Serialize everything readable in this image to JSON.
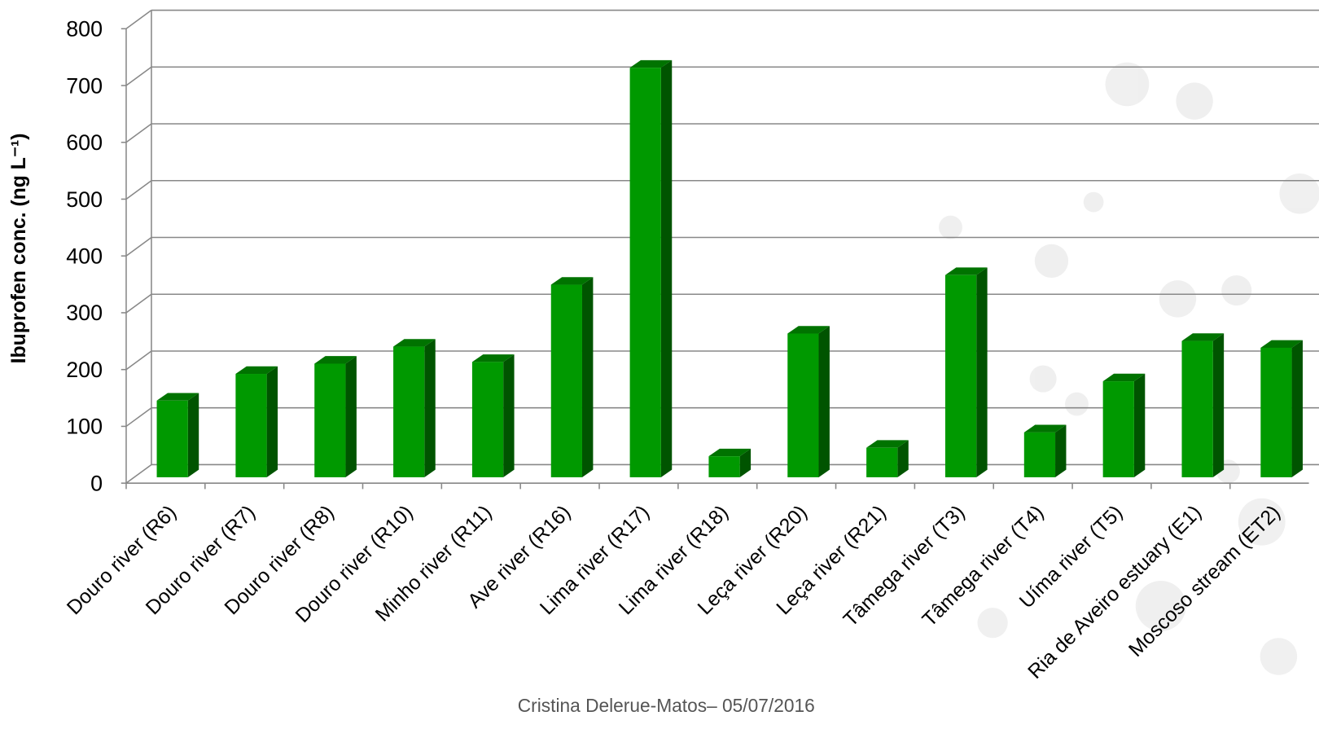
{
  "chart_data": {
    "type": "bar3d",
    "y_label": "Ibuprofen conc. (ng L⁻¹)",
    "footer": "Cristina Delerue-Matos– 05/07/2016",
    "categories": [
      "Douro river (R6)",
      "Douro river (R7)",
      "Douro river (R8)",
      "Douro river (R10)",
      "Minho river (R11)",
      "Ave river (R16)",
      "Lima river (R17)",
      "Lima river (R18)",
      "Leça river (R20)",
      "Leça river (R21)",
      "Tâmega river (T3)",
      "Tâmega river (T4)",
      "Uíma river (T5)",
      "Ria de Aveiro estuary (E1)",
      "Moscoso stream (ET2)"
    ],
    "values": [
      135,
      182,
      200,
      230,
      203,
      339,
      721,
      37,
      253,
      52,
      356,
      79,
      169,
      240,
      228
    ],
    "color": "#009900",
    "ylim": [
      0,
      800
    ],
    "yticks": [
      0,
      100,
      200,
      300,
      400,
      500,
      600,
      700,
      800
    ],
    "grid": true
  }
}
